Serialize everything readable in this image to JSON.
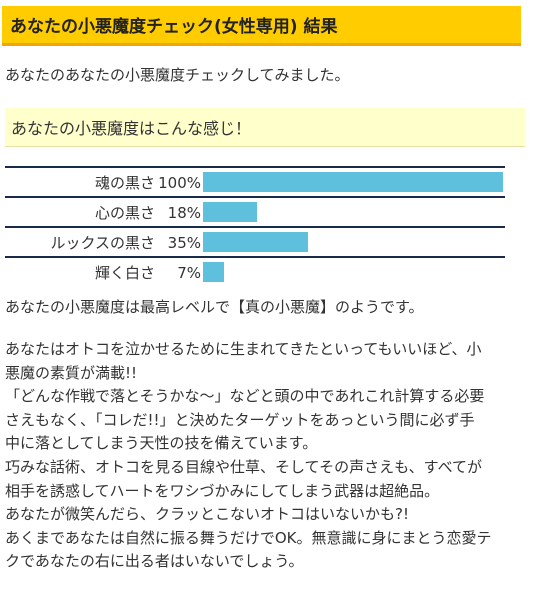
{
  "header": {
    "title": "あなたの小悪魔度チェック(女性専用) 結果"
  },
  "intro": "あなたのあなたの小悪魔度チェックしてみました。",
  "result_heading": "あなたの小悪魔度はこんな感じ！",
  "chart_data": {
    "type": "bar",
    "orientation": "horizontal",
    "categories": [
      "魂の黒さ",
      "心の黒さ",
      "ルックスの黒さ",
      "輝く白さ"
    ],
    "values": [
      100,
      18,
      35,
      7
    ],
    "value_labels": [
      "100%",
      "18%",
      "35%",
      "7%"
    ],
    "xlim": [
      0,
      100
    ],
    "bar_color": "#5ec0dc",
    "divider_color": "#1a2b4a"
  },
  "conclusion": "あなたの小悪魔度は最高レベルで【真の小悪魔】のようです。",
  "description": [
    "あなたはオトコを泣かせるために生まれてきたといってもいいほど、小",
    "悪魔の素質が満載!!",
    "「どんな作戦で落とそうかな～」などと頭の中であれこれ計算する必要",
    "さえもなく、「コレだ!!」と決めたターゲットをあっという間に必ず手",
    "中に落としてしまう天性の技を備えています。",
    "巧みな話術、オトコを見る目線や仕草、そしてその声さえも、すべてが",
    "相手を誘惑してハートをワシづかみにしてしまう武器は超絶品。",
    "あなたが微笑んだら、クラッとこないオトコはいないかも?!",
    "あくまであなたは自然に振る舞うだけでOK。無意識に身にまとう恋愛テ",
    "クであなたの右に出る者はいないでしょう。"
  ],
  "colors": {
    "header_bg": "#ffcc00",
    "header_border": "#f0a800",
    "result_bg": "#ffffcc",
    "text": "#333333"
  }
}
